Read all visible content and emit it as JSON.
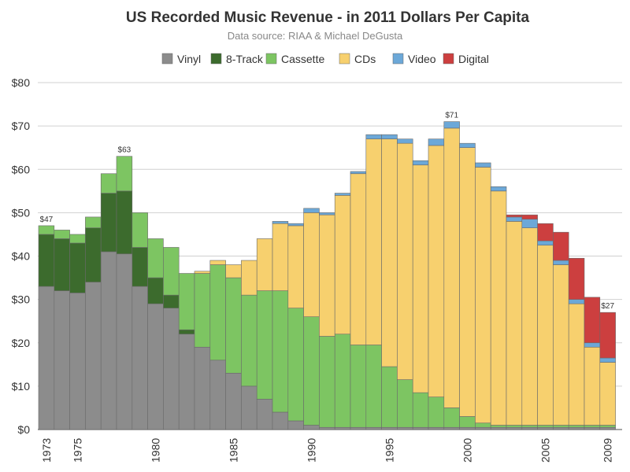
{
  "chart_data": {
    "type": "bar",
    "stacked": true,
    "title": "US Recorded Music Revenue - in 2011 Dollars Per Capita",
    "subtitle": "Data source: RIAA & Michael DeGusta",
    "y_tick_prefix": "$",
    "ylim": [
      0,
      80
    ],
    "y_ticks": [
      0,
      10,
      20,
      30,
      40,
      50,
      60,
      70,
      80
    ],
    "grid": true,
    "legend_position": "top",
    "x": [
      1973,
      1974,
      1975,
      1976,
      1977,
      1978,
      1979,
      1980,
      1981,
      1982,
      1983,
      1984,
      1985,
      1986,
      1987,
      1988,
      1989,
      1990,
      1991,
      1992,
      1993,
      1994,
      1995,
      1996,
      1997,
      1998,
      1999,
      2000,
      2001,
      2002,
      2003,
      2004,
      2005,
      2006,
      2007,
      2008,
      2009
    ],
    "x_tick_labels": [
      1973,
      1975,
      1980,
      1985,
      1990,
      1995,
      2000,
      2005,
      2009
    ],
    "series": [
      {
        "name": "Vinyl",
        "color": "#8c8c8c",
        "values": [
          33,
          32,
          31.5,
          34,
          41,
          40.5,
          33,
          29,
          28,
          22,
          19,
          16,
          13,
          10,
          7,
          4,
          2,
          1,
          0.5,
          0.5,
          0.5,
          0.5,
          0.5,
          0.5,
          0.5,
          0.5,
          0.5,
          0.5,
          0.5,
          0.5,
          0.5,
          0.5,
          0.5,
          0.5,
          0.5,
          0.5,
          0.5
        ]
      },
      {
        "name": "8-Track",
        "color": "#3c6b2d",
        "values": [
          12,
          12,
          11.5,
          12.5,
          13.5,
          14.5,
          9,
          6,
          3,
          1,
          0,
          0,
          0,
          0,
          0,
          0,
          0,
          0,
          0,
          0,
          0,
          0,
          0,
          0,
          0,
          0,
          0,
          0,
          0,
          0,
          0,
          0,
          0,
          0,
          0,
          0,
          0
        ]
      },
      {
        "name": "Cassette",
        "color": "#7dc562",
        "values": [
          2,
          2,
          2,
          2.5,
          4.5,
          8,
          8,
          9,
          11,
          13,
          17,
          22,
          22,
          21,
          25,
          28,
          26,
          25,
          21,
          21.5,
          19,
          19,
          14,
          11,
          8,
          7,
          4.5,
          2.5,
          1,
          0.5,
          0.5,
          0.5,
          0.5,
          0.5,
          0.5,
          0.5,
          0.5
        ]
      },
      {
        "name": "CDs",
        "color": "#f7d06e",
        "values": [
          0,
          0,
          0,
          0,
          0,
          0,
          0,
          0,
          0,
          0,
          0.5,
          1,
          3,
          8,
          12,
          15.5,
          19,
          24,
          28,
          32,
          39.5,
          47.5,
          52.5,
          54.5,
          52.5,
          58,
          64.5,
          62,
          59,
          54,
          47,
          45.5,
          41.5,
          37,
          28,
          18,
          14.5
        ]
      },
      {
        "name": "Video",
        "color": "#6ca8d8",
        "values": [
          0,
          0,
          0,
          0,
          0,
          0,
          0,
          0,
          0,
          0,
          0,
          0,
          0,
          0,
          0,
          0.5,
          0.5,
          1,
          0.5,
          0.5,
          0.5,
          1,
          1,
          1,
          1,
          1.5,
          1.5,
          1,
          1,
          1,
          1,
          2,
          1,
          1,
          1,
          1,
          1
        ]
      },
      {
        "name": "Digital",
        "color": "#cc3f3f",
        "values": [
          0,
          0,
          0,
          0,
          0,
          0,
          0,
          0,
          0,
          0,
          0,
          0,
          0,
          0,
          0,
          0,
          0,
          0,
          0,
          0,
          0,
          0,
          0,
          0,
          0,
          0,
          0,
          0,
          0,
          0,
          0.5,
          1,
          4,
          6.5,
          9.5,
          10.5,
          10.5
        ]
      }
    ],
    "annotations": [
      {
        "x": 1973,
        "label": "$47"
      },
      {
        "x": 1978,
        "label": "$63"
      },
      {
        "x": 1999,
        "label": "$71"
      },
      {
        "x": 2009,
        "label": "$27"
      }
    ]
  }
}
